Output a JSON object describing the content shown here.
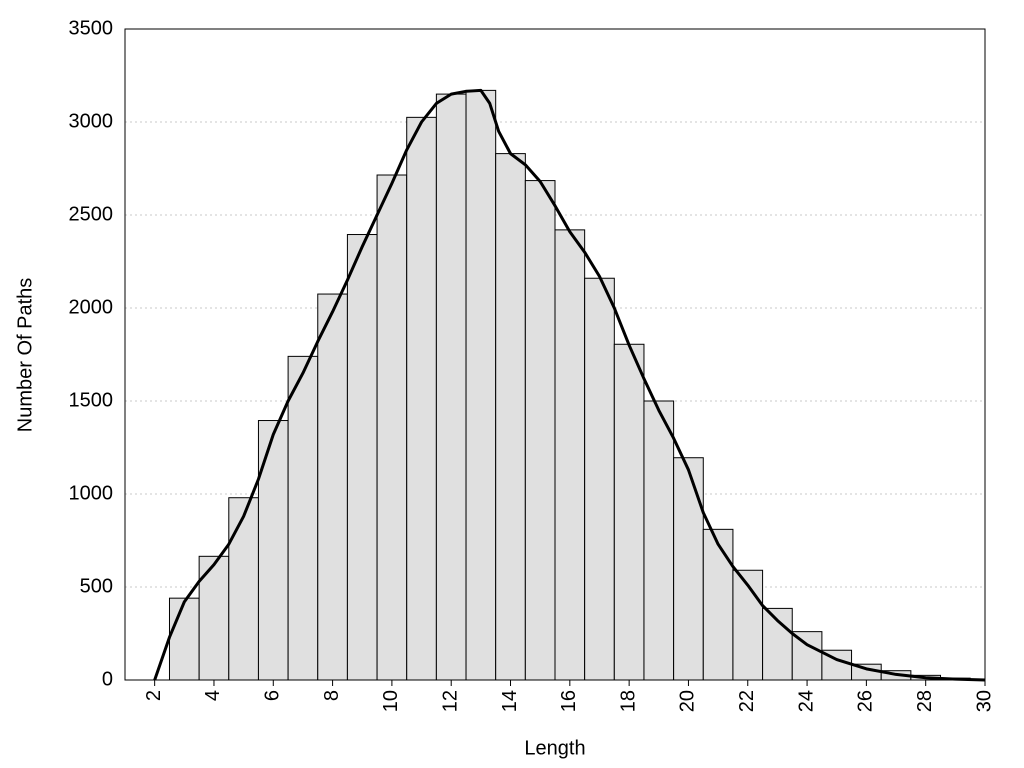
{
  "chart_data": {
    "type": "histogram",
    "xlabel": "Length",
    "ylabel": "Number Of Paths",
    "bins": [
      2.5,
      3.5,
      4.5,
      5.5,
      6.5,
      7.5,
      8.5,
      9.5,
      10.5,
      11.5,
      12.5,
      13.5,
      14.5,
      15.5,
      16.5,
      17.5,
      18.5,
      19.5,
      20.5,
      21.5,
      22.5,
      23.5,
      24.5,
      25.5,
      26.5,
      27.5,
      28.5,
      29.5
    ],
    "counts": [
      440,
      665,
      980,
      1395,
      1740,
      2075,
      2395,
      2715,
      3025,
      3150,
      3170,
      2830,
      2685,
      2420,
      2160,
      1805,
      1500,
      1195,
      810,
      590,
      385,
      260,
      160,
      85,
      50,
      25,
      10
    ],
    "color": "#e0e0e0",
    "curve": {
      "color": "#000000",
      "x": [
        2,
        2.5,
        3,
        3.5,
        4,
        4.5,
        5,
        5.5,
        6,
        6.5,
        7,
        7.5,
        8,
        8.5,
        9,
        9.5,
        10,
        10.5,
        11,
        11.5,
        12,
        12.5,
        13,
        13.3,
        13.6,
        14,
        14.5,
        15,
        15.5,
        16,
        16.5,
        17,
        17.5,
        18,
        18.5,
        19,
        19.5,
        20,
        20.5,
        21,
        21.5,
        22,
        22.5,
        23,
        23.5,
        24,
        25,
        26,
        27,
        28,
        29,
        30
      ],
      "y": [
        0,
        230,
        420,
        530,
        620,
        730,
        880,
        1080,
        1320,
        1500,
        1650,
        1820,
        1980,
        2150,
        2330,
        2500,
        2670,
        2850,
        3000,
        3100,
        3150,
        3165,
        3170,
        3100,
        2950,
        2830,
        2770,
        2680,
        2550,
        2410,
        2300,
        2170,
        2000,
        1800,
        1620,
        1450,
        1300,
        1130,
        900,
        730,
        610,
        510,
        400,
        320,
        250,
        190,
        110,
        60,
        30,
        12,
        5,
        0
      ]
    },
    "xlim": [
      1,
      30
    ],
    "ylim": [
      0,
      3500
    ],
    "xticks": [
      2,
      4,
      6,
      8,
      10,
      12,
      14,
      16,
      18,
      20,
      22,
      24,
      26,
      28,
      30
    ],
    "yticks": [
      0,
      500,
      1000,
      1500,
      2000,
      2500,
      3000,
      3500
    ],
    "grid": true
  }
}
